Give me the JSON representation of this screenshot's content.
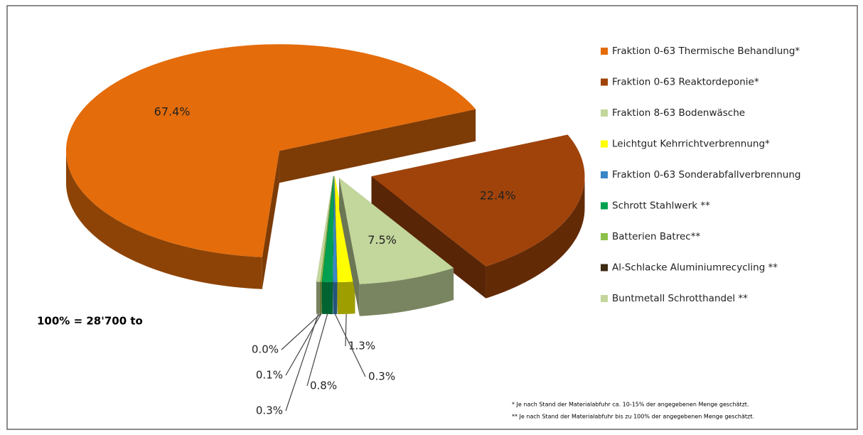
{
  "chart_data": {
    "type": "pie",
    "categories": [
      "Fraktion 0-63 Thermische Behandlung*",
      "Fraktion 0-63 Reaktordeponie*",
      "Fraktion 8-63 Bodenwäsche",
      "Leichtgut Kehrrichtverbrennung*",
      "Fraktion 0-63 Sonderabfallverbrennung",
      "Schrott Stahlwerk **",
      "Batterien Batrec**",
      "Al-Schlacke  Aluminiumrecycling **",
      "Buntmetall  Schrotthandel **"
    ],
    "values": [
      67.4,
      22.4,
      7.5,
      1.3,
      0.3,
      0.8,
      0.1,
      0.0,
      0.3
    ],
    "value_labels": [
      "67.4%",
      "22.4%",
      "7.5%",
      "1.3%",
      "0.3%",
      "0.8%",
      "0.1%",
      "0.0%",
      "0.3%"
    ],
    "colors": [
      "#e46c0a",
      "#a0430a",
      "#c3d69b",
      "#ffff00",
      "#3a87c8",
      "#00a050",
      "#8cc04a",
      "#3d2b12",
      "#c3d69b"
    ],
    "annotation": "100% = 28'700 to",
    "footnotes": [
      "*  Je nach Stand der Materialabfuhr ca. 10-15% der angegebenen Menge geschätzt.",
      "** Je nach Stand der Materialabfuhr bis zu 100% der angegebenen Menge geschätzt."
    ]
  }
}
